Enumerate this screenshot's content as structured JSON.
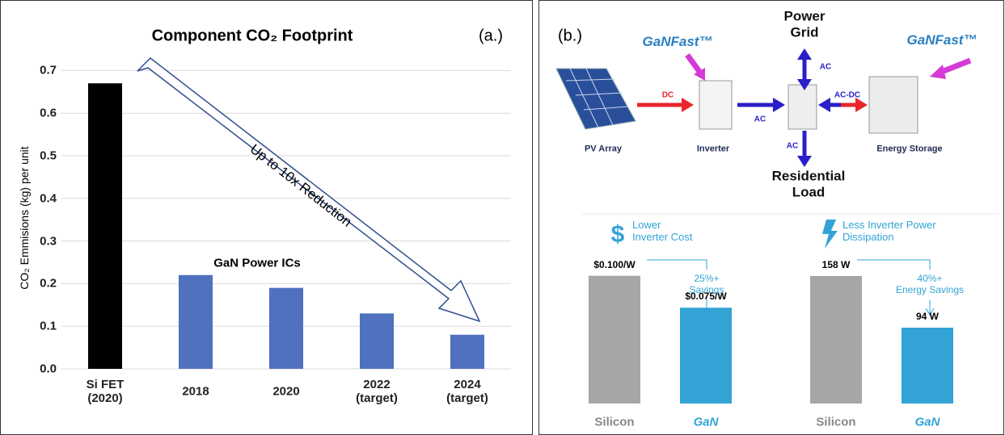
{
  "chart_data": [
    {
      "type": "bar",
      "title": "Component CO₂ Footprint",
      "panel_label": "(a.)",
      "y_label": "CO₂ Emmisions (kg) per unit",
      "categories": [
        "Si FET\n(2020)",
        "2018",
        "2020",
        "2022\n(target)",
        "2024\n(target)"
      ],
      "values": [
        0.67,
        0.22,
        0.19,
        0.13,
        0.08
      ],
      "colors": [
        "#000000",
        "#4f71be",
        "#4f71be",
        "#4f71be",
        "#4f71be"
      ],
      "ylim": [
        0,
        0.75
      ],
      "yticks": [
        {
          "value": 0,
          "label": "0.0"
        },
        0.1,
        0.2,
        0.3,
        0.4,
        0.5,
        0.6,
        0.7
      ],
      "grid": true,
      "annotations": [
        "Up to 10x Reduction",
        "GaN Power ICs"
      ]
    },
    {
      "type": "bar",
      "title": "Lower\nInverter Cost",
      "categories": [
        "Silicon",
        "GaN"
      ],
      "values": [
        0.1,
        0.075
      ],
      "value_labels": [
        "$0.100/W",
        "$0.075/W"
      ],
      "colors": [
        "#a6a6a6",
        "#33a3d6"
      ],
      "ylim": [
        0,
        0.12
      ],
      "annotation": "25%+\nSavings"
    },
    {
      "type": "bar",
      "title": "Less Inverter Power\nDissipation",
      "categories": [
        "Silicon",
        "GaN"
      ],
      "values": [
        158,
        94
      ],
      "value_labels": [
        "158 W",
        "94 W"
      ],
      "colors": [
        "#a6a6a6",
        "#33a3d6"
      ],
      "ylim": [
        0,
        190
      ],
      "annotation": "40%+\nEnergy Savings"
    }
  ],
  "diagram": {
    "panel_label": "(b.)",
    "logos": [
      "GaNFast™",
      "GaNFast™"
    ],
    "nodes": [
      "Power\nGrid",
      "PV Array",
      "Inverter",
      "Energy Storage",
      "Residential\nLoad"
    ],
    "links": [
      "DC",
      "AC",
      "AC",
      "AC-DC",
      "AC"
    ]
  }
}
